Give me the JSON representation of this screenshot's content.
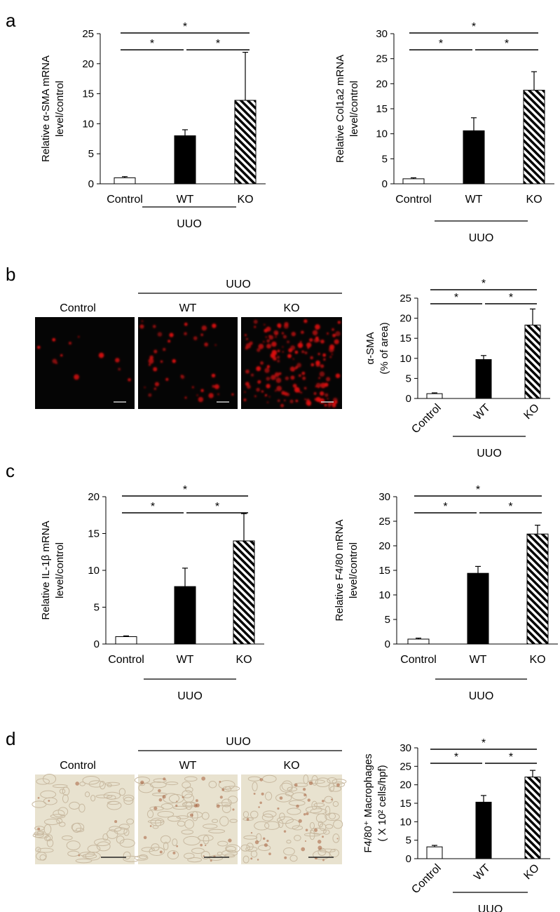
{
  "panels": {
    "a": "a",
    "b": "b",
    "c": "c",
    "d": "d"
  },
  "micrographs": {
    "b": {
      "group_label": "UUO",
      "labels": [
        "Control",
        "WT",
        "KO"
      ],
      "stain_color": "#e01010"
    },
    "d": {
      "group_label": "UUO",
      "labels": [
        "Control",
        "WT",
        "KO"
      ],
      "stain_color": "#a0522d"
    }
  },
  "colors": {
    "control_fill": "#ffffff",
    "wt_fill": "#000000",
    "ko_pattern": "diagonal-hatch-black"
  },
  "chart_data": [
    {
      "id": "a-left",
      "type": "bar",
      "categories": [
        "Control",
        "WT",
        "KO"
      ],
      "group_label": "UUO",
      "values": [
        1.0,
        8.0,
        13.9
      ],
      "errors": [
        0.2,
        1.0,
        8.0
      ],
      "ylabel_lines": [
        "Relative α-SMA mRNA",
        "level/control"
      ],
      "ylim": [
        0,
        25
      ],
      "yticks": [
        0,
        5,
        10,
        15,
        20,
        25
      ],
      "significance": [
        {
          "from": 0,
          "to": 1,
          "label": "*"
        },
        {
          "from": 1,
          "to": 2,
          "label": "*"
        },
        {
          "from": 0,
          "to": 2,
          "label": "*"
        }
      ]
    },
    {
      "id": "a-right",
      "type": "bar",
      "categories": [
        "Control",
        "WT",
        "KO"
      ],
      "group_label": "UUO",
      "values": [
        1.0,
        10.6,
        18.7
      ],
      "errors": [
        0.2,
        2.6,
        3.7
      ],
      "ylabel_lines": [
        "Relative Col1a2 mRNA",
        "level/control"
      ],
      "ylim": [
        0,
        30
      ],
      "yticks": [
        0,
        5,
        10,
        15,
        20,
        25,
        30
      ],
      "significance": [
        {
          "from": 0,
          "to": 1,
          "label": "*"
        },
        {
          "from": 1,
          "to": 2,
          "label": "*"
        },
        {
          "from": 0,
          "to": 2,
          "label": "*"
        }
      ]
    },
    {
      "id": "b-right",
      "type": "bar",
      "categories": [
        "Control",
        "WT",
        "KO"
      ],
      "group_label": "UUO",
      "values": [
        1.2,
        9.7,
        18.3
      ],
      "errors": [
        0.2,
        1.0,
        4.0
      ],
      "ylabel_lines": [
        "α-SMA",
        "(% of area)"
      ],
      "ylim": [
        0,
        25
      ],
      "yticks": [
        0,
        5,
        10,
        15,
        20,
        25
      ],
      "rotated_categories": true,
      "significance": [
        {
          "from": 0,
          "to": 1,
          "label": "*"
        },
        {
          "from": 1,
          "to": 2,
          "label": "*"
        },
        {
          "from": 0,
          "to": 2,
          "label": "*"
        }
      ]
    },
    {
      "id": "c-left",
      "type": "bar",
      "categories": [
        "Control",
        "WT",
        "KO"
      ],
      "group_label": "UUO",
      "values": [
        1.0,
        7.8,
        14.0
      ],
      "errors": [
        0.1,
        2.5,
        3.7
      ],
      "ylabel_lines": [
        "Relative IL-1β mRNA",
        "level/control"
      ],
      "ylim": [
        0,
        20
      ],
      "yticks": [
        0,
        5,
        10,
        15,
        20
      ],
      "significance": [
        {
          "from": 0,
          "to": 1,
          "label": "*"
        },
        {
          "from": 1,
          "to": 2,
          "label": "*"
        },
        {
          "from": 0,
          "to": 2,
          "label": "*"
        }
      ]
    },
    {
      "id": "c-right",
      "type": "bar",
      "categories": [
        "Control",
        "WT",
        "KO"
      ],
      "group_label": "UUO",
      "values": [
        1.0,
        14.4,
        22.4
      ],
      "errors": [
        0.2,
        1.4,
        1.8
      ],
      "ylabel_lines": [
        "Relative F4/80 mRNA",
        "level/control"
      ],
      "ylim": [
        0,
        30
      ],
      "yticks": [
        0,
        5,
        10,
        15,
        20,
        25,
        30
      ],
      "significance": [
        {
          "from": 0,
          "to": 1,
          "label": "*"
        },
        {
          "from": 1,
          "to": 2,
          "label": "*"
        },
        {
          "from": 0,
          "to": 2,
          "label": "*"
        }
      ]
    },
    {
      "id": "d-right",
      "type": "bar",
      "categories": [
        "Control",
        "WT",
        "KO"
      ],
      "group_label": "UUO",
      "values": [
        3.2,
        15.3,
        22.1
      ],
      "errors": [
        0.4,
        1.8,
        1.8
      ],
      "ylabel_lines": [
        "F4/80⁺ Macrophages",
        "( X 10² cells/hpf)"
      ],
      "ylim": [
        0,
        30
      ],
      "yticks": [
        0,
        5,
        10,
        15,
        20,
        25,
        30
      ],
      "rotated_categories": true,
      "significance": [
        {
          "from": 0,
          "to": 1,
          "label": "*"
        },
        {
          "from": 1,
          "to": 2,
          "label": "*"
        },
        {
          "from": 0,
          "to": 2,
          "label": "*"
        }
      ]
    }
  ]
}
